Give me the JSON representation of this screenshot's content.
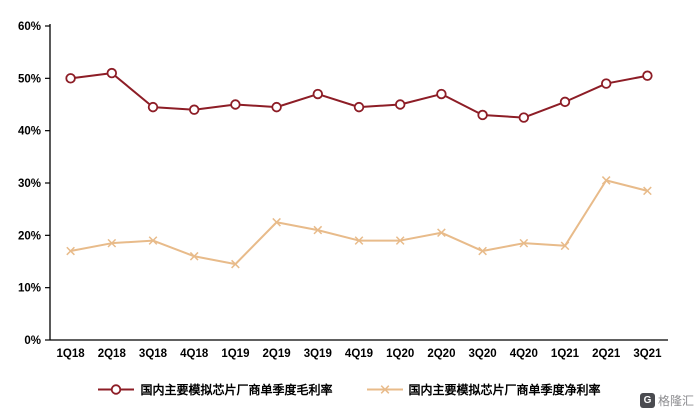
{
  "chart_data": {
    "type": "line",
    "categories": [
      "1Q18",
      "2Q18",
      "3Q18",
      "4Q18",
      "1Q19",
      "2Q19",
      "3Q19",
      "4Q19",
      "1Q20",
      "2Q20",
      "3Q20",
      "4Q20",
      "1Q21",
      "2Q21",
      "3Q21"
    ],
    "series": [
      {
        "name": "国内主要模拟芯片厂商单季度毛利率",
        "marker": "circle",
        "color": "#8d1d26",
        "values": [
          50,
          51,
          44.5,
          44,
          45,
          44.5,
          47,
          44.5,
          45,
          47,
          43,
          42.5,
          45.5,
          49,
          50.5
        ]
      },
      {
        "name": "国内主要模拟芯片厂商单季度净利率",
        "marker": "x",
        "color": "#e8bb8a",
        "values": [
          17,
          18.5,
          19,
          16,
          14.5,
          22.5,
          21,
          19,
          19,
          20.5,
          17,
          18.5,
          18,
          30.5,
          28.5
        ]
      }
    ],
    "title": "",
    "xlabel": "",
    "ylabel": "",
    "ylim": [
      0,
      60
    ],
    "ytick_step": 10,
    "ytick_suffix": "%",
    "grid": false,
    "legend_position": "bottom",
    "axis_color": "#000000",
    "background": "#ffffff"
  },
  "watermark": {
    "logo_letter": "G",
    "text": "格隆汇"
  }
}
